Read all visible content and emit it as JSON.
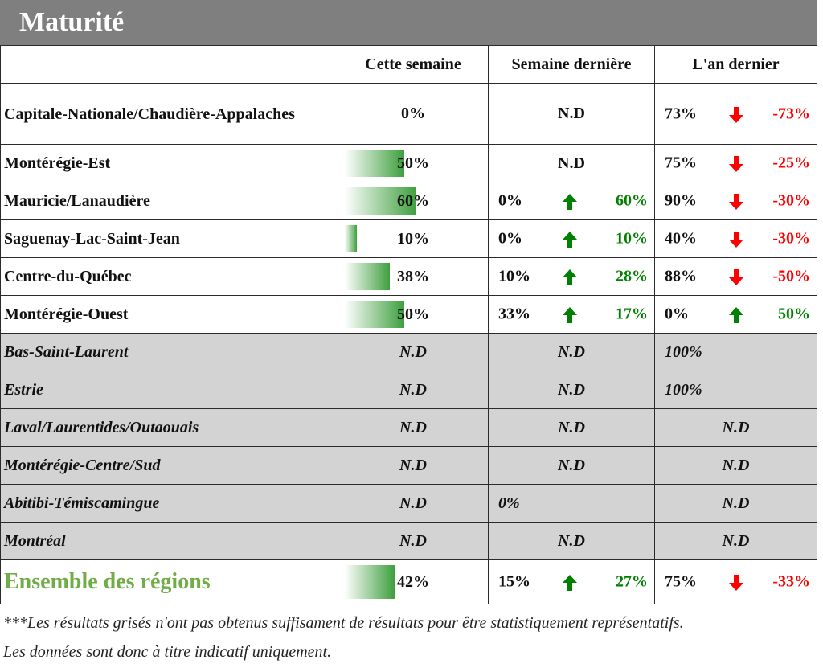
{
  "title": "Maturité",
  "headers": [
    "Cette semaine",
    "Semaine dernière",
    "L'an dernier"
  ],
  "colors": {
    "up": "#008000",
    "down": "#ff0000",
    "grey_row": "#d3d3d3",
    "title_bg": "#7f7f7f",
    "total_text": "#70ad47"
  },
  "rows": [
    {
      "name": "Capitale-Nationale/Chaudière-Appalaches",
      "this_week": "0%",
      "this_week_level": 0,
      "last_week": {
        "nd": "N.D"
      },
      "last_year": {
        "value": "73%",
        "dir": "down",
        "delta": "-73%"
      }
    },
    {
      "name": "Montérégie-Est",
      "this_week": "50%",
      "this_week_level": 0.5,
      "last_week": {
        "nd": "N.D"
      },
      "last_year": {
        "value": "75%",
        "dir": "down",
        "delta": "-25%"
      }
    },
    {
      "name": "Mauricie/Lanaudière",
      "this_week": "60%",
      "this_week_level": 0.6,
      "last_week": {
        "value": "0%",
        "dir": "up",
        "delta": "60%"
      },
      "last_year": {
        "value": "90%",
        "dir": "down",
        "delta": "-30%"
      }
    },
    {
      "name": "Saguenay-Lac-Saint-Jean",
      "this_week": "10%",
      "this_week_level": 0.1,
      "last_week": {
        "value": "0%",
        "dir": "up",
        "delta": "10%"
      },
      "last_year": {
        "value": "40%",
        "dir": "down",
        "delta": "-30%"
      }
    },
    {
      "name": "Centre-du-Québec",
      "this_week": "38%",
      "this_week_level": 0.38,
      "last_week": {
        "value": "10%",
        "dir": "up",
        "delta": "28%"
      },
      "last_year": {
        "value": "88%",
        "dir": "down",
        "delta": "-50%"
      }
    },
    {
      "name": "Montérégie-Ouest",
      "this_week": "50%",
      "this_week_level": 0.5,
      "last_week": {
        "value": "33%",
        "dir": "up",
        "delta": "17%"
      },
      "last_year": {
        "value": "0%",
        "dir": "up",
        "delta": "50%"
      }
    }
  ],
  "grey_rows": [
    {
      "name": "Bas-Saint-Laurent",
      "this_week": "N.D",
      "last_week": "N.D",
      "last_year_left": "100%"
    },
    {
      "name": "Estrie",
      "this_week": "N.D",
      "last_week": "N.D",
      "last_year_left": "100%"
    },
    {
      "name": "Laval/Laurentides/Outaouais",
      "this_week": "N.D",
      "last_week": "N.D",
      "last_year_center": "N.D"
    },
    {
      "name": "Montérégie-Centre/Sud",
      "this_week": "N.D",
      "last_week": "N.D",
      "last_year_center": "N.D"
    },
    {
      "name": "Abitibi-Témiscamingue",
      "this_week": "N.D",
      "last_week_left": "0%",
      "last_year_center": "N.D"
    },
    {
      "name": "Montréal",
      "this_week": "N.D",
      "last_week": "N.D",
      "last_year_center": "N.D"
    }
  ],
  "total": {
    "name": "Ensemble des régions",
    "this_week": "42%",
    "this_week_level": 0.42,
    "last_week": {
      "value": "15%",
      "dir": "up",
      "delta": "27%"
    },
    "last_year": {
      "value": "75%",
      "dir": "down",
      "delta": "-33%"
    }
  },
  "notes": [
    "***Les résultats grisés n'ont pas obtenus suffisament de résultats pour être statistiquement représentatifs.",
    "Les données sont donc à titre indicatif uniquement."
  ]
}
